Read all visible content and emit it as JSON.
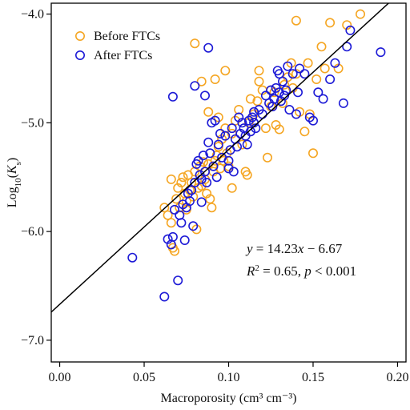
{
  "chart_data": {
    "type": "scatter",
    "xlabel": "Macroporosity (cm³ cm⁻³)",
    "ylabel": "Log10(Ks)",
    "xlim": [
      -0.005,
      0.205
    ],
    "ylim": [
      -7.2,
      -3.9
    ],
    "xticks": [
      0.0,
      0.05,
      0.1,
      0.15,
      0.2
    ],
    "xtick_labels": [
      "0.00",
      "0.05",
      "0.10",
      "0.15",
      "0.20"
    ],
    "yticks": [
      -7.0,
      -6.0,
      -5.0,
      -4.0
    ],
    "ytick_labels": [
      "−7.0",
      "−6.0",
      "−5.0",
      "−4.0"
    ],
    "grid": false,
    "legend_position": "top-left",
    "fit_line": {
      "slope": 14.23,
      "intercept": -6.67
    },
    "annotations": {
      "equation": "y = 14.23x − 6.67",
      "r2_line": "R2 = 0.65, p < 0.001"
    },
    "series": [
      {
        "name": "Before FTCs",
        "color": "#f5a623",
        "marker": "open-circle",
        "points": [
          [
            0.062,
            -5.78
          ],
          [
            0.064,
            -5.85
          ],
          [
            0.066,
            -5.52
          ],
          [
            0.067,
            -6.15
          ],
          [
            0.068,
            -6.18
          ],
          [
            0.069,
            -5.7
          ],
          [
            0.07,
            -5.6
          ],
          [
            0.071,
            -5.78
          ],
          [
            0.072,
            -5.55
          ],
          [
            0.073,
            -5.5
          ],
          [
            0.074,
            -5.65
          ],
          [
            0.075,
            -5.72
          ],
          [
            0.076,
            -5.48
          ],
          [
            0.077,
            -5.62
          ],
          [
            0.078,
            -5.55
          ],
          [
            0.079,
            -5.68
          ],
          [
            0.08,
            -5.45
          ],
          [
            0.081,
            -5.98
          ],
          [
            0.082,
            -5.6
          ],
          [
            0.083,
            -5.4
          ],
          [
            0.084,
            -5.58
          ],
          [
            0.086,
            -5.52
          ],
          [
            0.087,
            -5.65
          ],
          [
            0.088,
            -5.38
          ],
          [
            0.089,
            -5.7
          ],
          [
            0.09,
            -5.78
          ],
          [
            0.091,
            -5.45
          ],
          [
            0.092,
            -5.35
          ],
          [
            0.093,
            -5.3
          ],
          [
            0.094,
            -5.22
          ],
          [
            0.095,
            -5.42
          ],
          [
            0.096,
            -5.15
          ],
          [
            0.097,
            -5.35
          ],
          [
            0.098,
            -5.05
          ],
          [
            0.099,
            -5.28
          ],
          [
            0.1,
            -5.4
          ],
          [
            0.102,
            -5.1
          ],
          [
            0.104,
            -4.98
          ],
          [
            0.106,
            -4.88
          ],
          [
            0.108,
            -5.2
          ],
          [
            0.11,
            -5.45
          ],
          [
            0.111,
            -5.48
          ],
          [
            0.112,
            -5.0
          ],
          [
            0.113,
            -4.78
          ],
          [
            0.115,
            -4.92
          ],
          [
            0.117,
            -4.8
          ],
          [
            0.118,
            -4.52
          ],
          [
            0.12,
            -4.7
          ],
          [
            0.122,
            -5.05
          ],
          [
            0.123,
            -5.32
          ],
          [
            0.125,
            -4.85
          ],
          [
            0.127,
            -4.72
          ],
          [
            0.128,
            -5.02
          ],
          [
            0.13,
            -5.06
          ],
          [
            0.132,
            -4.82
          ],
          [
            0.133,
            -4.65
          ],
          [
            0.135,
            -4.58
          ],
          [
            0.137,
            -4.45
          ],
          [
            0.138,
            -4.68
          ],
          [
            0.14,
            -4.55
          ],
          [
            0.142,
            -4.9
          ],
          [
            0.145,
            -5.08
          ],
          [
            0.147,
            -4.45
          ],
          [
            0.148,
            -4.92
          ],
          [
            0.15,
            -5.28
          ],
          [
            0.152,
            -4.6
          ],
          [
            0.155,
            -4.3
          ],
          [
            0.157,
            -4.5
          ],
          [
            0.16,
            -4.08
          ],
          [
            0.165,
            -4.5
          ],
          [
            0.17,
            -4.1
          ],
          [
            0.178,
            -4.0
          ],
          [
            0.14,
            -4.06
          ],
          [
            0.088,
            -4.9
          ],
          [
            0.092,
            -4.6
          ],
          [
            0.084,
            -4.62
          ],
          [
            0.08,
            -4.27
          ],
          [
            0.098,
            -4.52
          ],
          [
            0.075,
            -5.8
          ],
          [
            0.066,
            -5.92
          ],
          [
            0.102,
            -5.6
          ],
          [
            0.085,
            -5.36
          ],
          [
            0.094,
            -4.95
          ],
          [
            0.118,
            -4.62
          ],
          [
            0.125,
            -4.7
          ]
        ]
      },
      {
        "name": "After FTCs",
        "color": "#1d1ad6",
        "marker": "open-circle",
        "points": [
          [
            0.043,
            -6.24
          ],
          [
            0.062,
            -6.6
          ],
          [
            0.064,
            -6.07
          ],
          [
            0.066,
            -6.12
          ],
          [
            0.067,
            -6.05
          ],
          [
            0.068,
            -5.8
          ],
          [
            0.07,
            -6.45
          ],
          [
            0.071,
            -5.85
          ],
          [
            0.072,
            -5.92
          ],
          [
            0.073,
            -5.75
          ],
          [
            0.074,
            -6.08
          ],
          [
            0.075,
            -5.78
          ],
          [
            0.076,
            -5.65
          ],
          [
            0.077,
            -5.72
          ],
          [
            0.078,
            -5.62
          ],
          [
            0.08,
            -5.55
          ],
          [
            0.081,
            -5.38
          ],
          [
            0.082,
            -5.35
          ],
          [
            0.083,
            -5.48
          ],
          [
            0.084,
            -5.52
          ],
          [
            0.085,
            -5.3
          ],
          [
            0.086,
            -5.45
          ],
          [
            0.087,
            -5.55
          ],
          [
            0.088,
            -5.18
          ],
          [
            0.089,
            -5.28
          ],
          [
            0.09,
            -5.0
          ],
          [
            0.091,
            -5.4
          ],
          [
            0.092,
            -4.98
          ],
          [
            0.093,
            -5.5
          ],
          [
            0.094,
            -5.2
          ],
          [
            0.096,
            -5.32
          ],
          [
            0.098,
            -5.12
          ],
          [
            0.1,
            -5.42
          ],
          [
            0.101,
            -5.25
          ],
          [
            0.102,
            -5.05
          ],
          [
            0.103,
            -5.45
          ],
          [
            0.104,
            -5.15
          ],
          [
            0.105,
            -5.22
          ],
          [
            0.106,
            -4.95
          ],
          [
            0.107,
            -5.1
          ],
          [
            0.108,
            -5.0
          ],
          [
            0.109,
            -5.05
          ],
          [
            0.11,
            -5.12
          ],
          [
            0.111,
            -5.2
          ],
          [
            0.112,
            -4.98
          ],
          [
            0.113,
            -5.08
          ],
          [
            0.114,
            -4.95
          ],
          [
            0.115,
            -4.9
          ],
          [
            0.116,
            -5.05
          ],
          [
            0.118,
            -4.88
          ],
          [
            0.12,
            -4.92
          ],
          [
            0.122,
            -4.75
          ],
          [
            0.124,
            -4.82
          ],
          [
            0.125,
            -4.7
          ],
          [
            0.126,
            -4.85
          ],
          [
            0.127,
            -4.78
          ],
          [
            0.128,
            -4.68
          ],
          [
            0.129,
            -4.52
          ],
          [
            0.13,
            -4.72
          ],
          [
            0.131,
            -4.8
          ],
          [
            0.132,
            -4.62
          ],
          [
            0.133,
            -4.75
          ],
          [
            0.134,
            -4.7
          ],
          [
            0.135,
            -4.48
          ],
          [
            0.136,
            -4.88
          ],
          [
            0.138,
            -4.55
          ],
          [
            0.14,
            -4.92
          ],
          [
            0.142,
            -4.5
          ],
          [
            0.145,
            -4.55
          ],
          [
            0.148,
            -4.95
          ],
          [
            0.15,
            -4.98
          ],
          [
            0.153,
            -4.72
          ],
          [
            0.156,
            -4.78
          ],
          [
            0.16,
            -4.6
          ],
          [
            0.163,
            -4.45
          ],
          [
            0.168,
            -4.82
          ],
          [
            0.17,
            -4.3
          ],
          [
            0.172,
            -4.15
          ],
          [
            0.19,
            -4.35
          ],
          [
            0.067,
            -4.76
          ],
          [
            0.08,
            -4.66
          ],
          [
            0.088,
            -4.31
          ],
          [
            0.086,
            -4.75
          ],
          [
            0.095,
            -5.1
          ],
          [
            0.1,
            -5.35
          ],
          [
            0.079,
            -5.95
          ],
          [
            0.084,
            -5.73
          ],
          [
            0.115,
            -5.0
          ],
          [
            0.13,
            -4.55
          ],
          [
            0.141,
            -4.72
          ]
        ]
      }
    ]
  }
}
